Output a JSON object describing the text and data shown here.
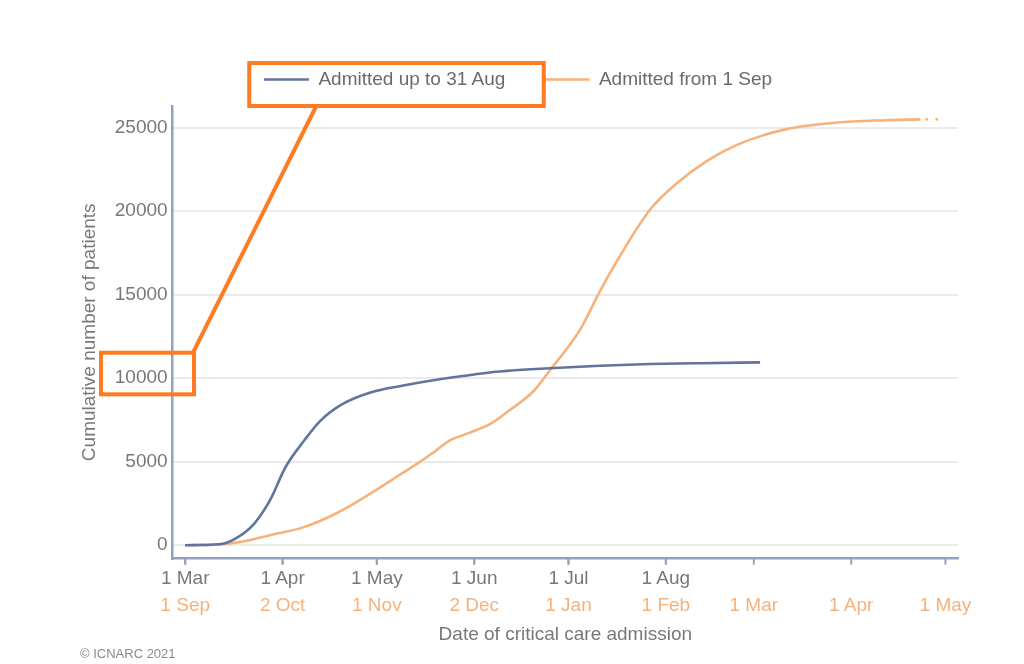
{
  "chart_data": {
    "type": "line",
    "xlabel": "Date of critical care admission",
    "ylabel": "Cumulative number of patients",
    "series": [
      {
        "name": "Admitted up to 31 Aug",
        "color": "#62739f",
        "x": [
          "--03-01",
          "--03-12",
          "--03-17",
          "--03-23",
          "--03-28",
          "--04-02",
          "--04-08",
          "--04-13",
          "--04-20",
          "--04-29",
          "--05-09",
          "--05-18",
          "--05-29",
          "--06-09",
          "--06-25",
          "--07-11",
          "--07-27",
          "--08-12",
          "--08-31"
        ],
        "values": [
          0,
          60,
          400,
          1300,
          2700,
          4700,
          6300,
          7450,
          8450,
          9150,
          9550,
          9850,
          10150,
          10400,
          10600,
          10750,
          10850,
          10900,
          10950
        ]
      },
      {
        "name": "Admitted from 1 Sep",
        "color": "#f6b27a",
        "axis": "x2",
        "x": [
          "2020-09-01",
          "2020-09-17",
          "2020-09-28",
          "2020-10-09",
          "2020-10-19",
          "2020-10-30",
          "2020-11-09",
          "2020-11-14",
          "2020-11-19",
          "2020-11-24",
          "2020-11-30",
          "2020-12-07",
          "2020-12-13",
          "2020-12-21",
          "2020-12-26",
          "2021-01-01",
          "2021-01-05",
          "2021-01-11",
          "2021-01-17",
          "2021-01-27",
          "2021-02-04",
          "2021-02-14",
          "2021-02-24",
          "2021-03-11",
          "2021-03-27",
          "2021-04-12",
          "2021-04-23"
        ],
        "values": [
          0,
          150,
          600,
          1100,
          1900,
          3100,
          4300,
          4900,
          5550,
          6250,
          6700,
          7250,
          8050,
          9250,
          10450,
          11900,
          13000,
          15200,
          17200,
          20100,
          21600,
          23000,
          24000,
          24900,
          25300,
          25450,
          25500
        ]
      },
      {
        "color": "#f6b27a",
        "axis": "x2",
        "line_style": "dotted",
        "x": [
          "2021-04-25",
          "2021-04-29"
        ],
        "values": [
          25500,
          25500
        ]
      }
    ],
    "xlim": [
      "--02-26",
      "--11-02"
    ],
    "xticks": [
      {
        "value": "--03-01",
        "label": "1 Mar"
      },
      {
        "value": "--04-01",
        "label": "1 Apr"
      },
      {
        "value": "--05-01",
        "label": "1 May"
      },
      {
        "value": "--06-01",
        "label": "1 Jun"
      },
      {
        "value": "--07-01",
        "label": "1 Jul"
      },
      {
        "value": "--08-01",
        "label": "1 Aug"
      }
    ],
    "x2lim": [
      "2020-08-28",
      "2021-05-05"
    ],
    "x2ticks": [
      {
        "value": "2020-09-01",
        "label": "1 Sep"
      },
      {
        "value": "2020-10-02",
        "label": "2 Oct"
      },
      {
        "value": "2020-11-01",
        "label": "1 Nov"
      },
      {
        "value": "2020-12-02",
        "label": "2 Dec"
      },
      {
        "value": "2021-01-01",
        "label": "1 Jan"
      },
      {
        "value": "2021-02-01",
        "label": "1 Feb"
      },
      {
        "value": "2021-03-01",
        "label": "1 Mar"
      },
      {
        "value": "2021-04-01",
        "label": "1 Apr"
      },
      {
        "value": "2021-05-01",
        "label": "1 May"
      }
    ],
    "ylim": [
      -800,
      26300
    ],
    "yticks": [
      0,
      5000,
      10000,
      15000,
      20000,
      25000
    ],
    "grid": "y",
    "legend": "top",
    "marker": "none",
    "annotations": [
      "© ICNARC 2021"
    ]
  }
}
